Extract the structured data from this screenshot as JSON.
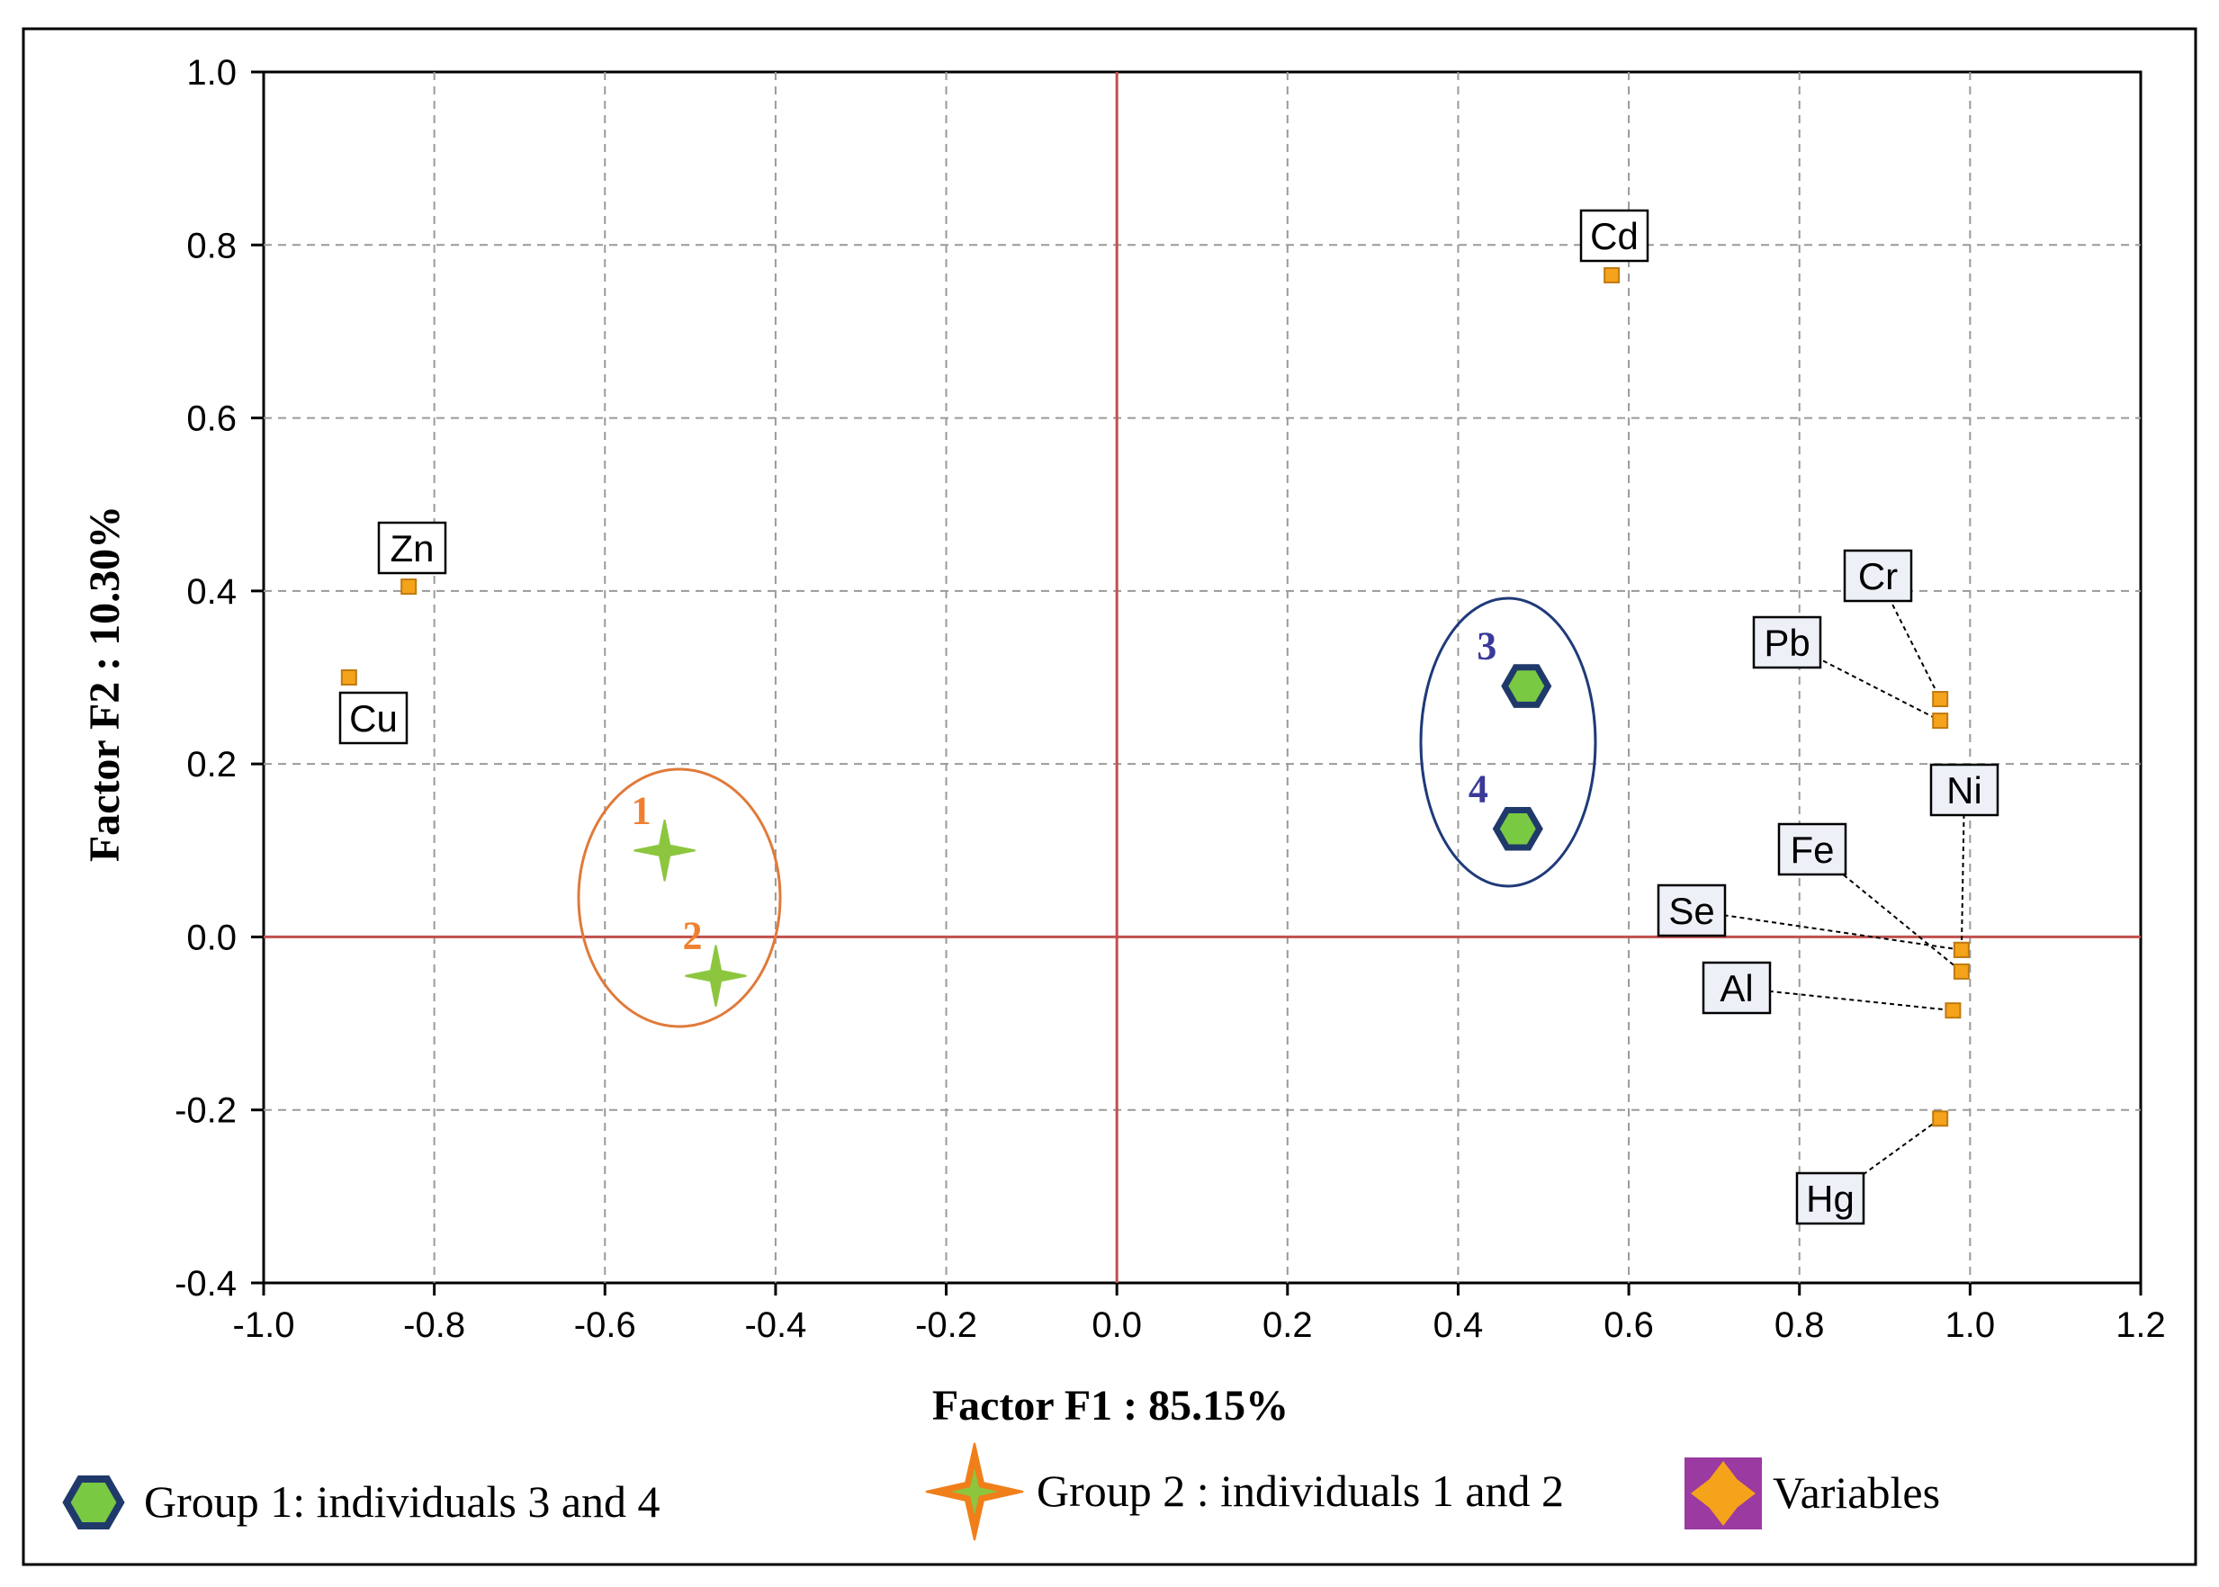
{
  "chart_data": {
    "type": "scatter",
    "title": "",
    "xlabel": "Factor F1 : 85.15%",
    "ylabel": "Factor F2 : 10.30%",
    "xlim": [
      -1.0,
      1.2
    ],
    "ylim": [
      -0.4,
      1.0
    ],
    "x_ticks": [
      {
        "value": -1.0,
        "label": "-1.0"
      },
      {
        "value": -0.8,
        "label": "-0.8"
      },
      {
        "value": -0.6,
        "label": "-0.6"
      },
      {
        "value": -0.4,
        "label": "-0.4"
      },
      {
        "value": -0.2,
        "label": "-0.2"
      },
      {
        "value": 0.0,
        "label": "0.0"
      },
      {
        "value": 0.2,
        "label": "0.2"
      },
      {
        "value": 0.4,
        "label": "0.4"
      },
      {
        "value": 0.6,
        "label": "0.6"
      },
      {
        "value": 0.8,
        "label": "0.8"
      },
      {
        "value": 1.0,
        "label": "1.0"
      },
      {
        "value": 1.2,
        "label": "1.2"
      }
    ],
    "y_ticks": [
      {
        "value": 1.0,
        "label": "1.0"
      },
      {
        "value": 0.8,
        "label": "0.8"
      },
      {
        "value": 0.6,
        "label": "0.6"
      },
      {
        "value": 0.4,
        "label": "0.4"
      },
      {
        "value": 0.2,
        "label": "0.2"
      },
      {
        "value": 0.0,
        "label": "0.0"
      },
      {
        "value": -0.2,
        "label": "-0.2"
      },
      {
        "value": -0.4,
        "label": "-0.4"
      }
    ],
    "grid": true,
    "series": [
      {
        "name": "Variables",
        "marker": "orange-square",
        "points": [
          {
            "label": "Cd",
            "x": 0.58,
            "y": 0.765
          },
          {
            "label": "Zn",
            "x": -0.83,
            "y": 0.405
          },
          {
            "label": "Cu",
            "x": -0.9,
            "y": 0.3
          },
          {
            "label": "Cr",
            "x": 0.965,
            "y": 0.275
          },
          {
            "label": "Pb",
            "x": 0.965,
            "y": 0.25
          },
          {
            "label": "Ni",
            "x": 0.99,
            "y": -0.015
          },
          {
            "label": "Fe",
            "x": 0.99,
            "y": -0.04
          },
          {
            "label": "Se",
            "x": 0.99,
            "y": -0.015
          },
          {
            "label": "Al",
            "x": 0.98,
            "y": -0.085
          },
          {
            "label": "Hg",
            "x": 0.965,
            "y": -0.21
          }
        ]
      },
      {
        "name": "Group 1: individuals 3 and 4",
        "marker": "green-hexagon",
        "points": [
          {
            "label": "3",
            "x": 0.48,
            "y": 0.29
          },
          {
            "label": "4",
            "x": 0.47,
            "y": 0.125
          }
        ]
      },
      {
        "name": "Group 2 : individuals 1 and 2",
        "marker": "green-star",
        "points": [
          {
            "label": "1",
            "x": -0.53,
            "y": 0.1
          },
          {
            "label": "2",
            "x": -0.47,
            "y": -0.045
          }
        ]
      }
    ],
    "legend": {
      "placement": "bottom",
      "entries": [
        {
          "label": "Group 1: individuals 3 and 4",
          "marker": "green-hexagon"
        },
        {
          "label": "Group 2 : individuals 1 and 2",
          "marker": "orange-green-star"
        },
        {
          "label": "Variables",
          "marker": "orange-square"
        }
      ]
    },
    "colors": {
      "axis_zero_line": "#c0504d",
      "group1_ellipse": "#1f3a7a",
      "group2_ellipse": "#e07a3a",
      "group1_label": "#3a3a9a",
      "group2_label": "#f08030",
      "variable_marker": "#f5a31a",
      "hexagon_fill": "#7ac943",
      "hexagon_stroke": "#1f3a6a",
      "star_fill": "#8cc63f",
      "star_stroke": "#f07f1a"
    }
  }
}
